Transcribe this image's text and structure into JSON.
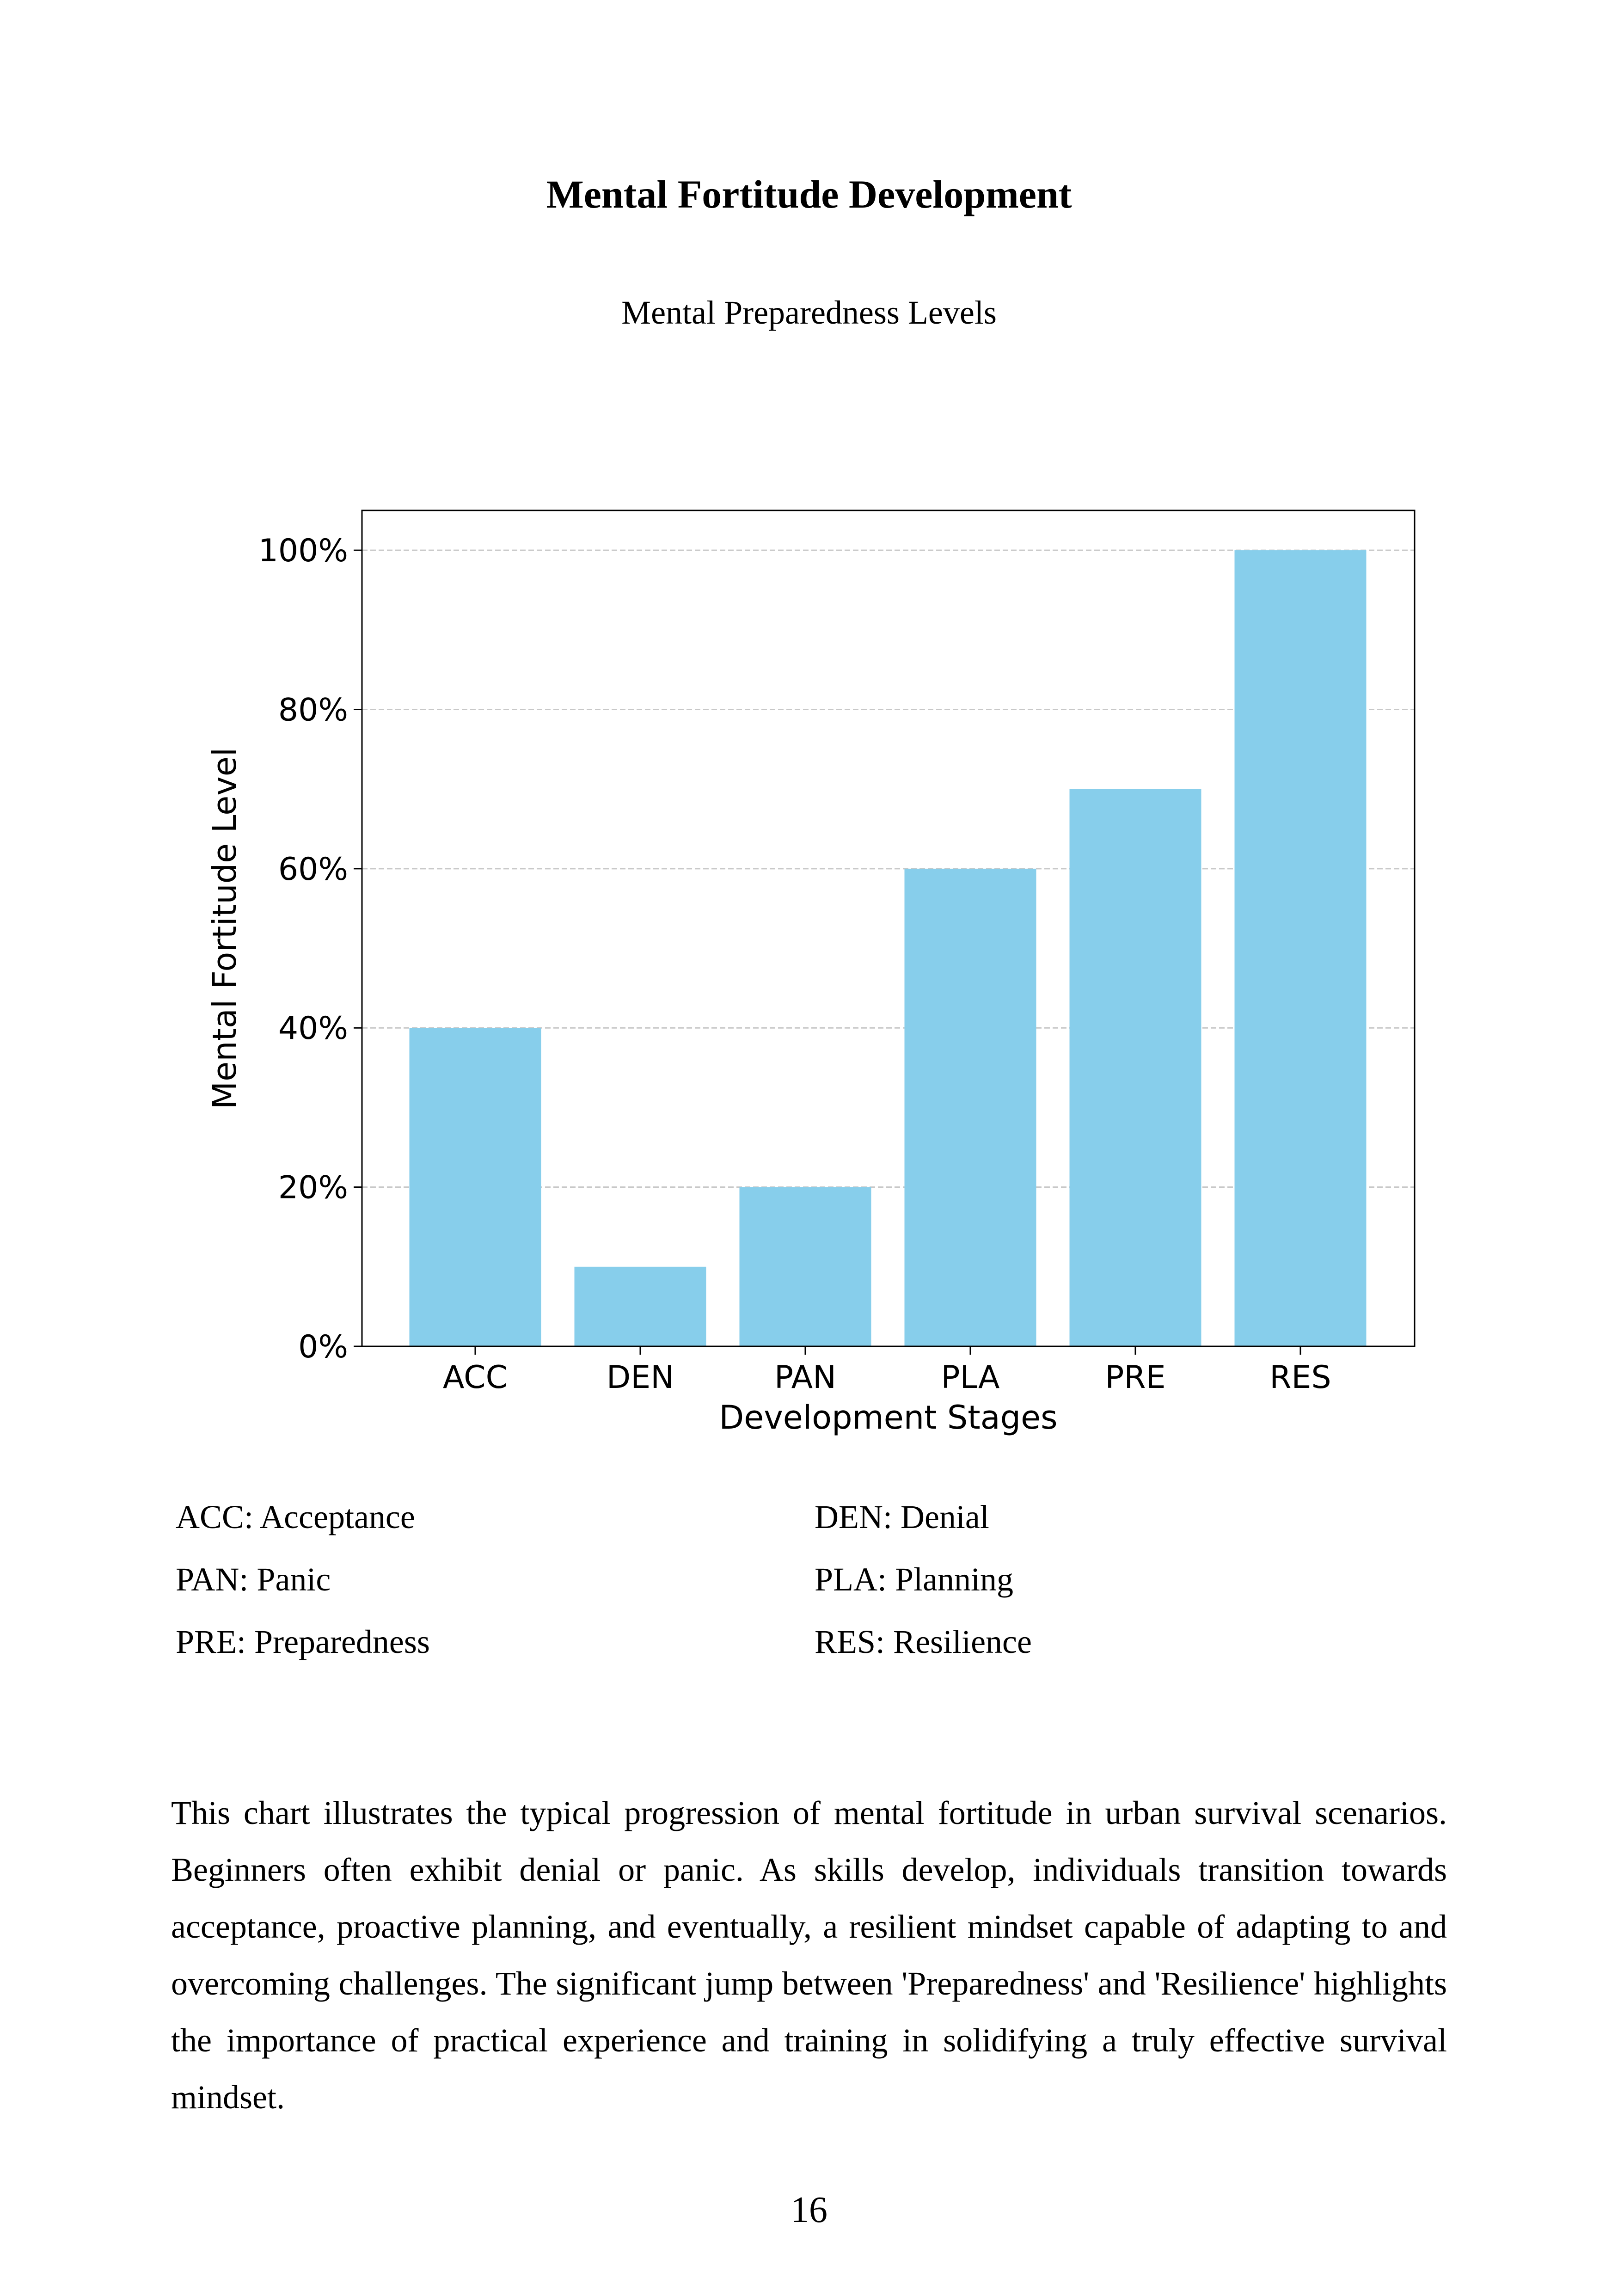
{
  "page": {
    "title": "Mental Fortitude Development",
    "subtitle": "Mental Preparedness Levels",
    "page_number": "16"
  },
  "chart_data": {
    "type": "bar",
    "categories": [
      "ACC",
      "DEN",
      "PAN",
      "PLA",
      "PRE",
      "RES"
    ],
    "values": [
      40,
      10,
      20,
      60,
      70,
      100
    ],
    "xlabel": "Development Stages",
    "ylabel": "Mental Fortitude Level",
    "ylim": [
      0,
      105
    ],
    "yticks": [
      0,
      20,
      40,
      60,
      80,
      100
    ],
    "ytick_labels": [
      "0%",
      "20%",
      "40%",
      "60%",
      "80%",
      "100%"
    ],
    "grid": "horizontal dashed",
    "bar_color": "#87ceeb"
  },
  "legend": [
    {
      "label": "ACC: Acceptance"
    },
    {
      "label": "DEN: Denial"
    },
    {
      "label": "PAN: Panic"
    },
    {
      "label": "PLA: Planning"
    },
    {
      "label": "PRE: Preparedness"
    },
    {
      "label": "RES: Resilience"
    }
  ],
  "caption": "This chart illustrates the typical progression of mental fortitude in urban survival scenarios. Beginners often exhibit denial or panic. As skills develop, individuals transition towards acceptance, proactive planning, and eventually, a resilient mindset capable of adapting to and overcoming challenges. The significant jump between 'Preparedness' and 'Resilience' highlights the importance of practical experience and training in solidifying a truly effective survival mindset."
}
